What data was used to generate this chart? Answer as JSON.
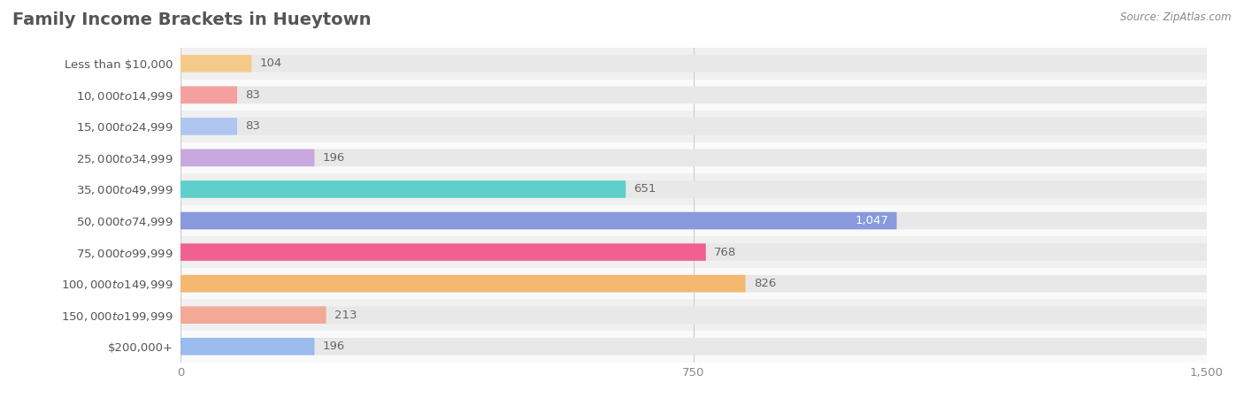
{
  "title": "Family Income Brackets in Hueytown",
  "source": "Source: ZipAtlas.com",
  "categories": [
    "Less than $10,000",
    "$10,000 to $14,999",
    "$15,000 to $24,999",
    "$25,000 to $34,999",
    "$35,000 to $49,999",
    "$50,000 to $74,999",
    "$75,000 to $99,999",
    "$100,000 to $149,999",
    "$150,000 to $199,999",
    "$200,000+"
  ],
  "values": [
    104,
    83,
    83,
    196,
    651,
    1047,
    768,
    826,
    213,
    196
  ],
  "bar_colors": [
    "#f5c98a",
    "#f4a0a0",
    "#aec6f0",
    "#c9a8e0",
    "#5ecfca",
    "#8899dd",
    "#f06090",
    "#f5b870",
    "#f4a898",
    "#99bbee"
  ],
  "xlim": [
    0,
    1500
  ],
  "xticks": [
    0,
    750,
    1500
  ],
  "background_color": "#ffffff",
  "bar_bg_color": "#e8e8e8",
  "row_colors": [
    "#f0f0f0",
    "#fafafa"
  ],
  "title_fontsize": 14,
  "label_fontsize": 9.5,
  "value_fontsize": 9.5
}
